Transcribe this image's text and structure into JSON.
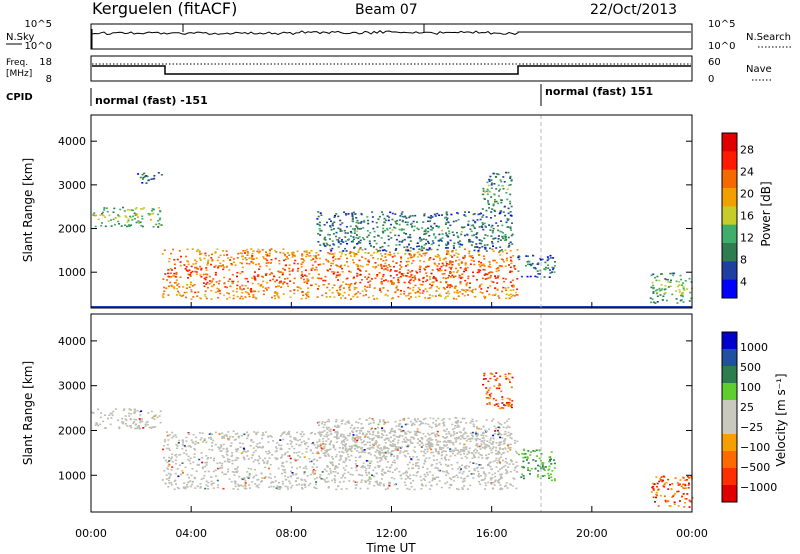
{
  "header": {
    "station": "Kerguelen (fitACF)",
    "beam": "Beam 07",
    "date": "22/Oct/2013"
  },
  "panels": {
    "noise": {
      "left_label": "N.Sky",
      "left_ticks": [
        "10^5",
        "10^0"
      ],
      "right_label": "N.Search",
      "right_ticks": [
        "10^5",
        "10^0"
      ]
    },
    "freq": {
      "left_label_1": "Freq.",
      "left_label_2": "[MHz]",
      "left_ticks": [
        "18",
        "8"
      ],
      "right_label": "Nave",
      "right_ticks": [
        "60",
        "0"
      ]
    },
    "cpid": {
      "label": "CPID",
      "segments": [
        "normal (fast) -151",
        "normal (fast) 151"
      ]
    }
  },
  "colors": {
    "power_scale": [
      "#0000ff",
      "#1f3fa0",
      "#2e7d4f",
      "#3fae6a",
      "#c6cc2a",
      "#f0a000",
      "#f56a00",
      "#ff1a00",
      "#e00000"
    ],
    "velocity_scale": [
      "#0000cc",
      "#2050a0",
      "#2e7d4f",
      "#5fcf30",
      "#c9c9c0",
      "#c9c9c0",
      "#f5a000",
      "#ff6a00",
      "#ff3000",
      "#e00000"
    ],
    "ground_scatter": "#bdbdb4"
  },
  "chart_data": [
    {
      "type": "heatmap",
      "name": "power",
      "ylabel": "Slant Range [km]",
      "yticks": [
        "4000",
        "3000",
        "2000",
        "1000"
      ],
      "ytick_values": [
        4000,
        3000,
        2000,
        1000
      ],
      "ylim": [
        180,
        4600
      ],
      "xlim": [
        0,
        24
      ],
      "colorbar_label": "Power [dB]",
      "colorbar_ticks": [
        "28",
        "24",
        "20",
        "16",
        "12",
        "8",
        "4"
      ],
      "colorbar_range": [
        0,
        32
      ],
      "scatter_regions": [
        {
          "t": [
            0.0,
            2.8
          ],
          "r": [
            2050,
            2500
          ],
          "level": 16
        },
        {
          "t": [
            1.8,
            2.8
          ],
          "r": [
            3050,
            3300
          ],
          "level": 8
        },
        {
          "t": [
            2.8,
            17.0
          ],
          "r": [
            400,
            1550
          ],
          "level": 26
        },
        {
          "t": [
            9.0,
            16.8
          ],
          "r": [
            1500,
            2400
          ],
          "level": 10
        },
        {
          "t": [
            15.6,
            16.8
          ],
          "r": [
            2400,
            3300
          ],
          "level": 12
        },
        {
          "t": [
            17.0,
            18.5
          ],
          "r": [
            900,
            1400
          ],
          "level": 9
        },
        {
          "t": [
            22.3,
            24.0
          ],
          "r": [
            300,
            1000
          ],
          "level": 14
        }
      ]
    },
    {
      "type": "heatmap",
      "name": "velocity",
      "ylabel": "Slant Range [km]",
      "yticks": [
        "4000",
        "3000",
        "2000",
        "1000"
      ],
      "ytick_values": [
        4000,
        3000,
        2000,
        1000
      ],
      "ylim": [
        180,
        4600
      ],
      "xlim": [
        0,
        24
      ],
      "colorbar_label": "Velocity [m s⁻¹]",
      "colorbar_ticks": [
        "1000",
        "500",
        "100",
        "25",
        "−25",
        "−100",
        "−500",
        "−1000"
      ],
      "colorbar_range": [
        -1200,
        1200
      ],
      "scatter_regions": [
        {
          "t": [
            0.0,
            2.8
          ],
          "r": [
            2050,
            2500
          ],
          "kind": "ground"
        },
        {
          "t": [
            2.8,
            17.0
          ],
          "r": [
            700,
            2000
          ],
          "kind": "ground"
        },
        {
          "t": [
            9.0,
            16.8
          ],
          "r": [
            1500,
            2300
          ],
          "kind": "ground"
        },
        {
          "t": [
            15.6,
            16.8
          ],
          "r": [
            2500,
            3300
          ],
          "kind": "negative"
        },
        {
          "t": [
            17.0,
            18.5
          ],
          "r": [
            900,
            1600
          ],
          "kind": "positive"
        },
        {
          "t": [
            22.3,
            24.0
          ],
          "r": [
            300,
            1000
          ],
          "kind": "negative"
        }
      ]
    }
  ],
  "xaxis": {
    "label": "Time UT",
    "ticks": [
      "00:00",
      "04:00",
      "08:00",
      "12:00",
      "16:00",
      "20:00",
      "00:00"
    ],
    "tick_hours": [
      0,
      4,
      8,
      12,
      16,
      20,
      24
    ]
  }
}
